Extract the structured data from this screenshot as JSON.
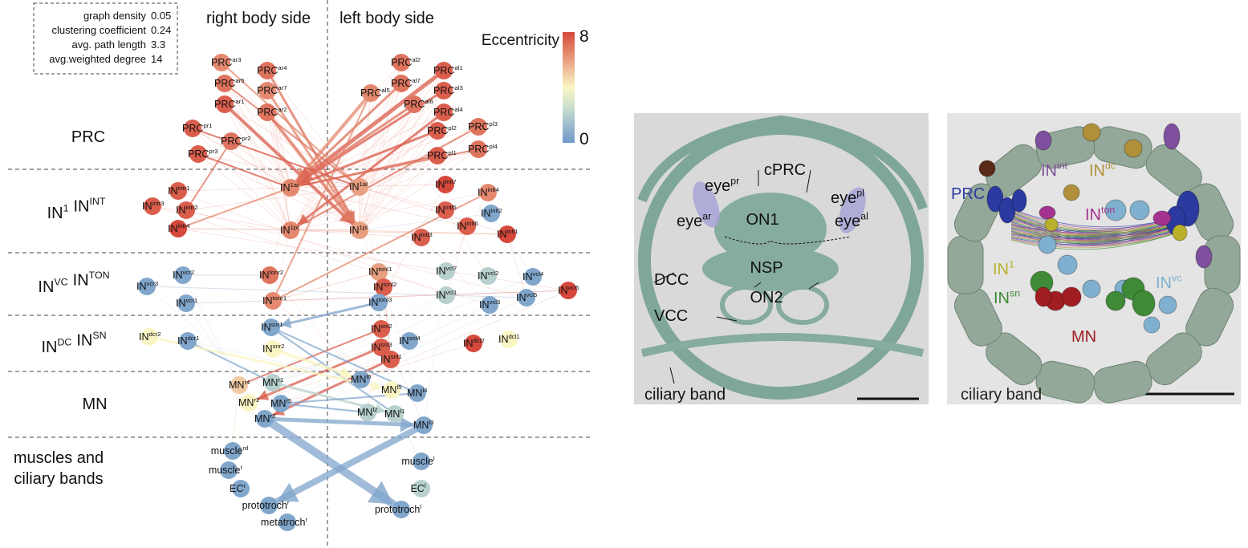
{
  "stats": [
    {
      "label": "graph density",
      "value": 0.05
    },
    {
      "label": "clustering coefficient",
      "value": 0.24
    },
    {
      "label": "avg. path length",
      "value": 3.3
    },
    {
      "label": "avg.weighted degree",
      "value": 14
    }
  ],
  "headers": [
    "right body side",
    "left body side"
  ],
  "colorbar": {
    "title": "Eccentricity",
    "ticks": [
      0,
      8
    ]
  },
  "rows": [
    {
      "parts": [
        {
          "base": "PRC"
        }
      ]
    },
    {
      "parts": [
        {
          "base": "IN",
          "sup": "1"
        },
        {
          "base": "IN",
          "sup": "INT"
        }
      ]
    },
    {
      "parts": [
        {
          "base": "IN",
          "sup": "VC"
        },
        {
          "base": "IN",
          "sup": "TON"
        }
      ]
    },
    {
      "parts": [
        {
          "base": "IN",
          "sup": "DC"
        },
        {
          "base": "IN",
          "sup": "SN"
        }
      ]
    },
    {
      "parts": [
        {
          "base": "MN"
        }
      ]
    },
    {
      "lines": [
        "muscles and",
        "ciliary bands"
      ]
    }
  ],
  "nodes": [
    {
      "base": "PRC",
      "sup": "ar3",
      "eccentricity": 6.5
    },
    {
      "base": "PRC",
      "sup": "ar4",
      "eccentricity": 7
    },
    {
      "base": "PRC",
      "sup": "ar5",
      "eccentricity": 7
    },
    {
      "base": "PRC",
      "sup": "ar7",
      "eccentricity": 6.5
    },
    {
      "base": "PRC",
      "sup": "ar1",
      "eccentricity": 7.5
    },
    {
      "base": "PRC",
      "sup": "ar2",
      "eccentricity": 7
    },
    {
      "base": "PRC",
      "sup": "pr1",
      "eccentricity": 7.5
    },
    {
      "base": "PRC",
      "sup": "pr2",
      "eccentricity": 7
    },
    {
      "base": "PRC",
      "sup": "pr3",
      "eccentricity": 7.5
    },
    {
      "base": "PRC",
      "sup": "al2",
      "eccentricity": 7
    },
    {
      "base": "PRC",
      "sup": "al7",
      "eccentricity": 7
    },
    {
      "base": "PRC",
      "sup": "al1",
      "eccentricity": 7.5
    },
    {
      "base": "PRC",
      "sup": "al5",
      "eccentricity": 6.5
    },
    {
      "base": "PRC",
      "sup": "al3",
      "eccentricity": 7.5
    },
    {
      "base": "PRC",
      "sup": "al6",
      "eccentricity": 7
    },
    {
      "base": "PRC",
      "sup": "al4",
      "eccentricity": 7.5
    },
    {
      "base": "PRC",
      "sup": "pl2",
      "eccentricity": 7.5
    },
    {
      "base": "PRC",
      "sup": "pl3",
      "eccentricity": 7
    },
    {
      "base": "PRC",
      "sup": "pl1",
      "eccentricity": 7.5
    },
    {
      "base": "PRC",
      "sup": "pl4",
      "eccentricity": 7
    },
    {
      "base": "IN",
      "sup": "intr1",
      "eccentricity": 7.5
    },
    {
      "base": "IN",
      "sup": "intr3",
      "eccentricity": 7.5
    },
    {
      "base": "IN",
      "sup": "intr2",
      "eccentricity": 7.5
    },
    {
      "base": "IN",
      "sup": "intr4",
      "eccentricity": 8
    },
    {
      "base": "IN",
      "sup": "1ar",
      "eccentricity": 6.5
    },
    {
      "base": "IN",
      "sup": "1pr",
      "eccentricity": 6.5
    },
    {
      "base": "IN",
      "sup": "1al",
      "eccentricity": 6
    },
    {
      "base": "IN",
      "sup": "1pl",
      "eccentricity": 6
    },
    {
      "base": "IN",
      "sup": "intl7",
      "eccentricity": 8
    },
    {
      "base": "IN",
      "sup": "intl4",
      "eccentricity": 6.5
    },
    {
      "base": "IN",
      "sup": "intl5",
      "eccentricity": 7.5
    },
    {
      "base": "IN",
      "sup": "intl2",
      "eccentricity": 0.5
    },
    {
      "base": "IN",
      "sup": "intl6",
      "eccentricity": 7.5
    },
    {
      "base": "IN",
      "sup": "intl3",
      "eccentricity": 7.5
    },
    {
      "base": "IN",
      "sup": "intl1",
      "eccentricity": 8
    },
    {
      "base": "IN",
      "sup": "vcr2",
      "eccentricity": 0.5
    },
    {
      "base": "IN",
      "sup": "vcr3",
      "eccentricity": 0.5
    },
    {
      "base": "IN",
      "sup": "vcr1",
      "eccentricity": 0.5
    },
    {
      "base": "IN",
      "sup": "tonr2",
      "eccentricity": 7
    },
    {
      "base": "IN",
      "sup": "tonr1",
      "eccentricity": 6.5
    },
    {
      "base": "IN",
      "sup": "tonl1",
      "eccentricity": 6
    },
    {
      "base": "IN",
      "sup": "tonl2",
      "eccentricity": 7.5
    },
    {
      "base": "IN",
      "sup": "tonl3",
      "eccentricity": 0.5
    },
    {
      "base": "IN",
      "sup": "vcl7",
      "eccentricity": 2
    },
    {
      "base": "IN",
      "sup": "vcl2",
      "eccentricity": 2
    },
    {
      "base": "IN",
      "sup": "vcl4",
      "eccentricity": 0.5
    },
    {
      "base": "IN",
      "sup": "vcl1",
      "eccentricity": 2
    },
    {
      "base": "IN",
      "sup": "vcl3",
      "eccentricity": 0.5
    },
    {
      "base": "IN",
      "sup": "vcl5",
      "eccentricity": 0.5
    },
    {
      "base": "IN",
      "sup": "vcl6",
      "eccentricity": 8
    },
    {
      "base": "IN",
      "sup": "dcr2",
      "eccentricity": 4
    },
    {
      "base": "IN",
      "sup": "dcr1",
      "eccentricity": 0.5
    },
    {
      "base": "IN",
      "sup": "snr1",
      "eccentricity": 0.5
    },
    {
      "base": "IN",
      "sup": "snr2",
      "eccentricity": 4
    },
    {
      "base": "IN",
      "sup": "snl2",
      "eccentricity": 7.5
    },
    {
      "base": "IN",
      "sup": "snl3",
      "eccentricity": 7.5
    },
    {
      "base": "IN",
      "sup": "snl4",
      "eccentricity": 0.5
    },
    {
      "base": "IN",
      "sup": "snl1",
      "eccentricity": 7.5
    },
    {
      "base": "IN",
      "sup": "dcl2",
      "eccentricity": 8
    },
    {
      "base": "IN",
      "sup": "dcl1",
      "eccentricity": 4
    },
    {
      "base": "MN",
      "sup": "r4",
      "eccentricity": 5
    },
    {
      "base": "MN",
      "sup": "r1",
      "eccentricity": 2
    },
    {
      "base": "MN",
      "sup": "r2",
      "eccentricity": 4
    },
    {
      "base": "MN",
      "sup": "r5",
      "eccentricity": 0.5
    },
    {
      "base": "MN",
      "sup": "r3",
      "eccentricity": 0.5
    },
    {
      "base": "MN",
      "sup": "l6",
      "eccentricity": 0.5
    },
    {
      "base": "MN",
      "sup": "l5",
      "eccentricity": 4
    },
    {
      "base": "MN",
      "sup": "l4",
      "eccentricity": 0.5
    },
    {
      "base": "MN",
      "sup": "l2",
      "eccentricity": 2
    },
    {
      "base": "MN",
      "sup": "l1",
      "eccentricity": 2
    },
    {
      "base": "MN",
      "sup": "l3",
      "eccentricity": 0.5
    },
    {
      "base": "muscle",
      "sup": "rd",
      "eccentricity": 0.5
    },
    {
      "base": "muscle",
      "sup": "r",
      "eccentricity": 0.5
    },
    {
      "base": "EC",
      "sup": "r",
      "eccentricity": 0.5
    },
    {
      "base": "prototroch",
      "sup": "r",
      "eccentricity": 0.5
    },
    {
      "base": "metatroch",
      "sup": "r",
      "eccentricity": 0.5
    },
    {
      "base": "muscle",
      "sup": "l",
      "eccentricity": 0.5
    },
    {
      "base": "EC",
      "sup": "l",
      "eccentricity": 2
    },
    {
      "base": "prototroch",
      "sup": "l",
      "eccentricity": 0.5
    }
  ],
  "panel_b": {
    "labels": [
      {
        "base": "cPRC"
      },
      {
        "base": "eye",
        "sup": "pr"
      },
      {
        "base": "eye",
        "sup": "ar"
      },
      {
        "base": "eye",
        "sup": "pl"
      },
      {
        "base": "eye",
        "sup": "al"
      },
      {
        "base": "ON1"
      },
      {
        "base": "NSP"
      },
      {
        "base": "DCC"
      },
      {
        "base": "ON2"
      },
      {
        "base": "VCC"
      },
      {
        "base": "ciliary band"
      }
    ]
  },
  "panel_c": {
    "labels": [
      {
        "base": "PRC"
      },
      {
        "base": "IN",
        "sup": "int"
      },
      {
        "base": "IN",
        "sup": "dc"
      },
      {
        "base": "IN",
        "sup": "ton"
      },
      {
        "base": "IN",
        "sup": "1"
      },
      {
        "base": "IN",
        "sup": "sn"
      },
      {
        "base": "IN",
        "sup": "vc"
      },
      {
        "base": "MN"
      },
      {
        "base": "ciliary band"
      }
    ]
  }
}
